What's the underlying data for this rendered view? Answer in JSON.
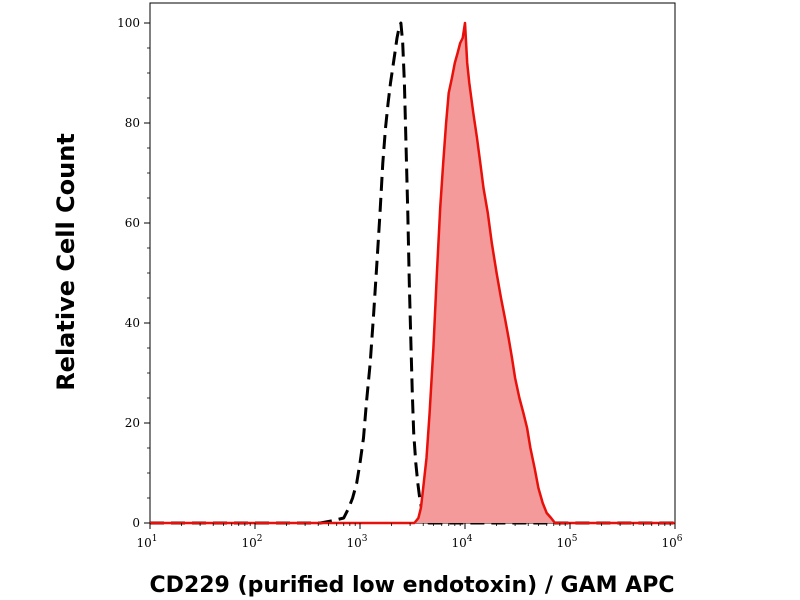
{
  "chart_data": {
    "type": "area",
    "title": "",
    "xlabel": "CD229 (purified low endotoxin) / GAM APC",
    "ylabel": "Relative Cell Count",
    "x_scale": "log10",
    "xlim": [
      10,
      1000000
    ],
    "ylim": [
      0,
      100
    ],
    "y_ticks": [
      0,
      20,
      40,
      60,
      80,
      100
    ],
    "x_ticks": [
      {
        "base": "10",
        "exp": "1"
      },
      {
        "base": "10",
        "exp": "2"
      },
      {
        "base": "10",
        "exp": "3"
      },
      {
        "base": "10",
        "exp": "4"
      },
      {
        "base": "10",
        "exp": "5"
      },
      {
        "base": "10",
        "exp": "6"
      }
    ],
    "grid": false,
    "series": [
      {
        "style": "dashed",
        "color": "#000000",
        "fill": "none",
        "points": [
          [
            10,
            0
          ],
          [
            420,
            0
          ],
          [
            560,
            0.5
          ],
          [
            700,
            1
          ],
          [
            780,
            3
          ],
          [
            850,
            5
          ],
          [
            930,
            8
          ],
          [
            1000,
            12
          ],
          [
            1080,
            17
          ],
          [
            1150,
            24
          ],
          [
            1250,
            32
          ],
          [
            1350,
            42
          ],
          [
            1450,
            52
          ],
          [
            1550,
            62
          ],
          [
            1650,
            72
          ],
          [
            1750,
            79
          ],
          [
            1850,
            84
          ],
          [
            1950,
            88
          ],
          [
            2050,
            91
          ],
          [
            2150,
            94
          ],
          [
            2250,
            97
          ],
          [
            2350,
            99
          ],
          [
            2450,
            100
          ],
          [
            2550,
            96
          ],
          [
            2650,
            88
          ],
          [
            2750,
            75
          ],
          [
            2850,
            62
          ],
          [
            2950,
            48
          ],
          [
            3050,
            36
          ],
          [
            3150,
            26
          ],
          [
            3250,
            18
          ],
          [
            3400,
            12
          ],
          [
            3550,
            8
          ],
          [
            3700,
            5
          ],
          [
            3850,
            3
          ],
          [
            4000,
            1.5
          ],
          [
            4200,
            0.5
          ],
          [
            4500,
            0
          ],
          [
            1000000,
            0
          ]
        ]
      },
      {
        "style": "solid",
        "color": "#e8100a",
        "fill": "#f49a9a",
        "points": [
          [
            10,
            0
          ],
          [
            3300,
            0
          ],
          [
            3600,
            1
          ],
          [
            3800,
            3
          ],
          [
            4000,
            7
          ],
          [
            4300,
            13
          ],
          [
            4600,
            22
          ],
          [
            5000,
            35
          ],
          [
            5400,
            50
          ],
          [
            5800,
            63
          ],
          [
            6200,
            72
          ],
          [
            6600,
            80
          ],
          [
            7000,
            86
          ],
          [
            7500,
            89
          ],
          [
            8000,
            92
          ],
          [
            8500,
            94
          ],
          [
            9000,
            96
          ],
          [
            9500,
            97
          ],
          [
            10000,
            100
          ],
          [
            10500,
            92
          ],
          [
            11000,
            88
          ],
          [
            12000,
            82
          ],
          [
            13000,
            77
          ],
          [
            14000,
            72
          ],
          [
            15000,
            67
          ],
          [
            16500,
            62
          ],
          [
            18000,
            56
          ],
          [
            20000,
            50
          ],
          [
            22000,
            45
          ],
          [
            24000,
            41
          ],
          [
            26000,
            37
          ],
          [
            28000,
            33
          ],
          [
            30000,
            29
          ],
          [
            33000,
            25
          ],
          [
            36000,
            22
          ],
          [
            39000,
            19
          ],
          [
            42000,
            15
          ],
          [
            46000,
            11
          ],
          [
            50000,
            7
          ],
          [
            55000,
            4
          ],
          [
            60000,
            2
          ],
          [
            66000,
            1
          ],
          [
            72000,
            0
          ],
          [
            1000000,
            0
          ]
        ]
      }
    ]
  }
}
